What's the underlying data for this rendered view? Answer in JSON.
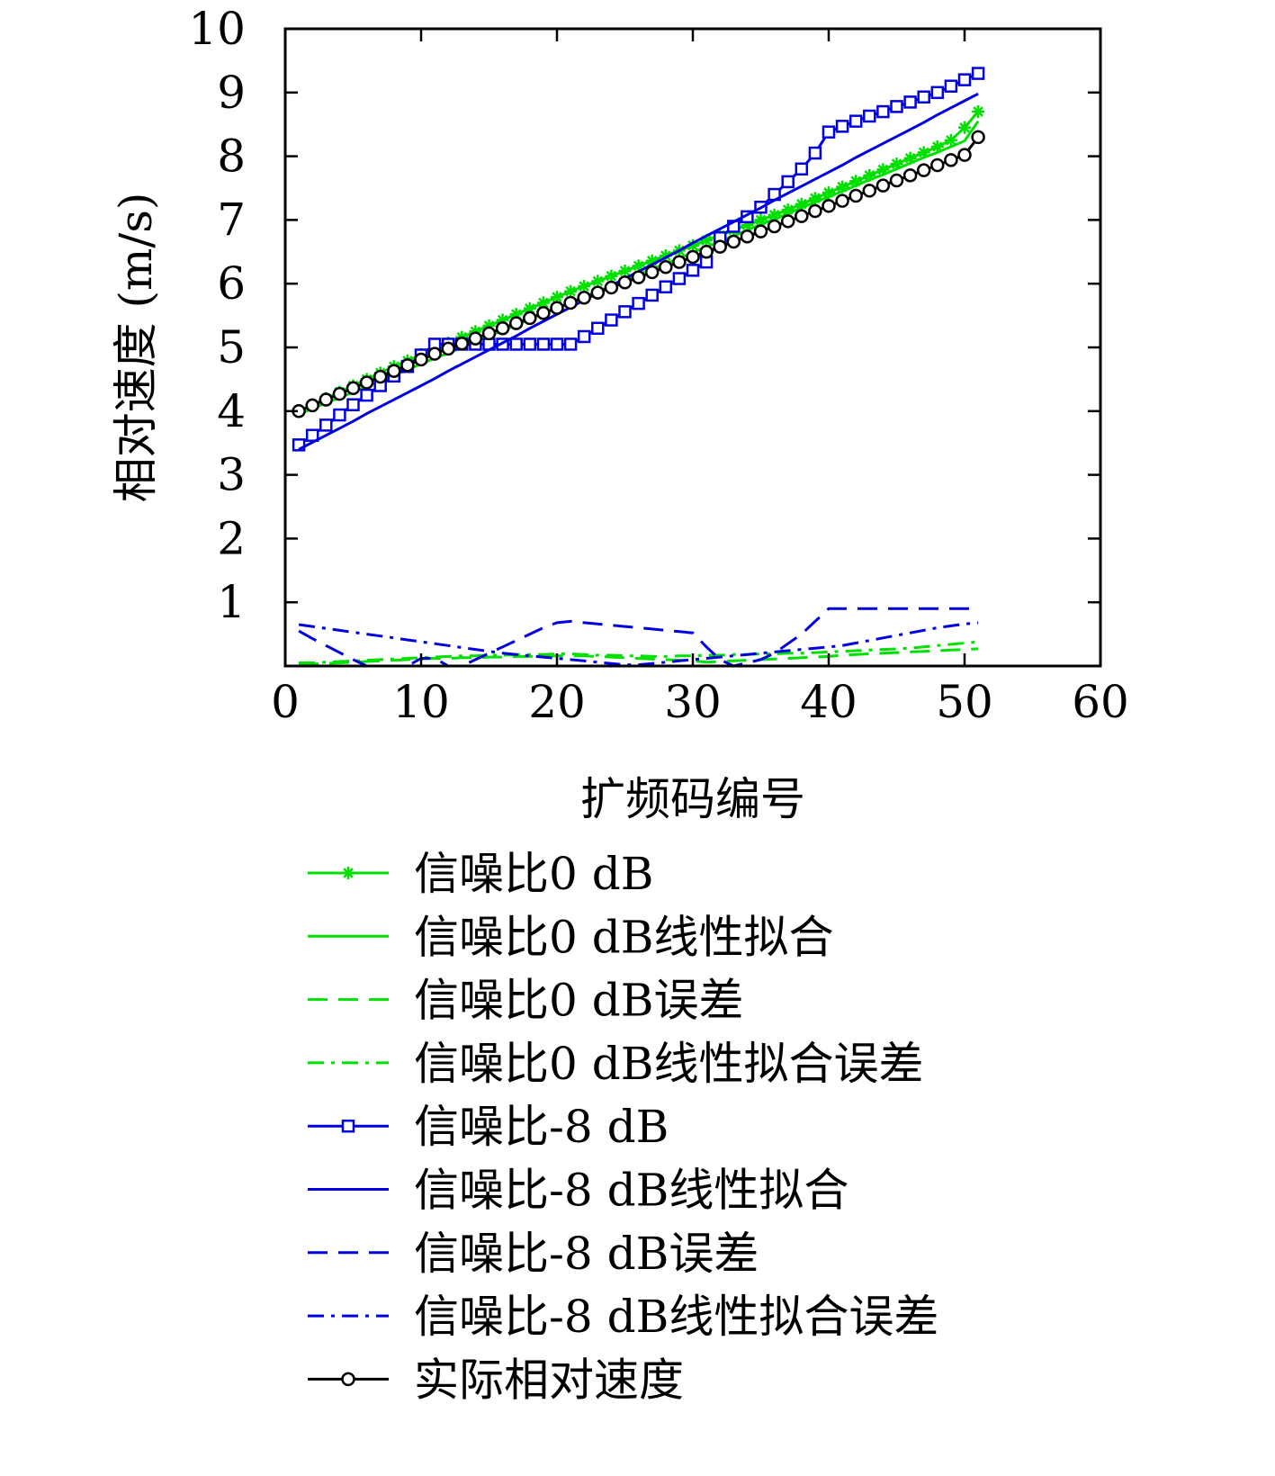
{
  "chart_data": {
    "type": "line",
    "xlabel": "扩频码编号",
    "ylabel": "相对速度 (m/s)",
    "xlim": [
      0,
      60
    ],
    "ylim": [
      0,
      10
    ],
    "xticks": [
      0,
      10,
      20,
      30,
      40,
      50,
      60
    ],
    "yticks": [
      1,
      2,
      3,
      4,
      5,
      6,
      7,
      8,
      9,
      10
    ],
    "grid": false,
    "legend_position": "below",
    "x": [
      1,
      2,
      3,
      4,
      5,
      6,
      7,
      8,
      9,
      10,
      11,
      12,
      13,
      14,
      15,
      16,
      17,
      18,
      19,
      20,
      21,
      22,
      23,
      24,
      25,
      26,
      27,
      28,
      29,
      30,
      31,
      32,
      33,
      34,
      35,
      36,
      37,
      38,
      39,
      40,
      41,
      42,
      43,
      44,
      45,
      46,
      47,
      48,
      49,
      50,
      51
    ],
    "series": [
      {
        "name": "信噪比0 dB",
        "color": "#00e000",
        "style": "solid",
        "marker": "star",
        "values": [
          4.0,
          4.1,
          4.2,
          4.3,
          4.4,
          4.5,
          4.6,
          4.7,
          4.79,
          4.89,
          4.98,
          5.07,
          5.16,
          5.25,
          5.34,
          5.43,
          5.52,
          5.61,
          5.7,
          5.79,
          5.88,
          5.96,
          6.04,
          6.12,
          6.2,
          6.28,
          6.36,
          6.44,
          6.52,
          6.6,
          6.68,
          6.76,
          6.84,
          6.92,
          7.0,
          7.08,
          7.16,
          7.25,
          7.34,
          7.43,
          7.52,
          7.61,
          7.7,
          7.79,
          7.88,
          7.97,
          8.06,
          8.15,
          8.25,
          8.45,
          8.7
        ]
      },
      {
        "name": "信噪比0 dB线性拟合",
        "color": "#00e000",
        "style": "solid",
        "marker": "none",
        "values": [
          3.95,
          4.04,
          4.13,
          4.21,
          4.3,
          4.39,
          4.48,
          4.56,
          4.65,
          4.74,
          4.83,
          4.91,
          5.0,
          5.09,
          5.18,
          5.26,
          5.35,
          5.44,
          5.53,
          5.61,
          5.7,
          5.79,
          5.88,
          5.96,
          6.05,
          6.14,
          6.23,
          6.31,
          6.4,
          6.49,
          6.58,
          6.66,
          6.75,
          6.84,
          6.93,
          7.01,
          7.1,
          7.19,
          7.28,
          7.36,
          7.45,
          7.54,
          7.63,
          7.71,
          7.8,
          7.89,
          7.98,
          8.06,
          8.15,
          8.24,
          8.55
        ]
      },
      {
        "name": "信噪比0 dB误差",
        "color": "#00e000",
        "style": "dashed",
        "marker": "none",
        "values": [
          0.02,
          0.03,
          0.04,
          0.05,
          0.06,
          0.07,
          0.08,
          0.09,
          0.1,
          0.11,
          0.12,
          0.12,
          0.13,
          0.13,
          0.14,
          0.14,
          0.15,
          0.15,
          0.15,
          0.16,
          0.16,
          0.16,
          0.15,
          0.14,
          0.13,
          0.12,
          0.11,
          0.1,
          0.09,
          0.08,
          0.06,
          0.07,
          0.08,
          0.09,
          0.1,
          0.11,
          0.12,
          0.13,
          0.14,
          0.15,
          0.17,
          0.18,
          0.19,
          0.2,
          0.21,
          0.22,
          0.23,
          0.24,
          0.25,
          0.26,
          0.27
        ]
      },
      {
        "name": "信噪比0 dB线性拟合误差",
        "color": "#00e000",
        "style": "dashdot",
        "marker": "none",
        "values": [
          0.05,
          0.05,
          0.06,
          0.07,
          0.08,
          0.09,
          0.1,
          0.11,
          0.12,
          0.13,
          0.14,
          0.15,
          0.16,
          0.16,
          0.17,
          0.17,
          0.18,
          0.18,
          0.18,
          0.19,
          0.19,
          0.18,
          0.17,
          0.17,
          0.16,
          0.16,
          0.15,
          0.15,
          0.16,
          0.16,
          0.17,
          0.17,
          0.18,
          0.18,
          0.19,
          0.19,
          0.2,
          0.2,
          0.21,
          0.22,
          0.23,
          0.24,
          0.25,
          0.26,
          0.27,
          0.28,
          0.3,
          0.32,
          0.34,
          0.36,
          0.38
        ]
      },
      {
        "name": "信噪比-8 dB",
        "color": "#0000e0",
        "style": "solid",
        "marker": "square",
        "values": [
          3.47,
          3.62,
          3.78,
          3.94,
          4.1,
          4.25,
          4.4,
          4.55,
          4.7,
          4.88,
          5.05,
          5.05,
          5.05,
          5.05,
          5.05,
          5.05,
          5.05,
          5.05,
          5.05,
          5.05,
          5.05,
          5.17,
          5.3,
          5.43,
          5.56,
          5.69,
          5.82,
          5.95,
          6.08,
          6.21,
          6.34,
          6.72,
          6.9,
          7.05,
          7.2,
          7.4,
          7.6,
          7.8,
          8.05,
          8.38,
          8.47,
          8.55,
          8.63,
          8.7,
          8.78,
          8.85,
          8.93,
          9.0,
          9.1,
          9.2,
          9.3
        ]
      },
      {
        "name": "信噪比-8 dB线性拟合",
        "color": "#0000e0",
        "style": "solid",
        "marker": "none",
        "values": [
          3.4,
          3.51,
          3.62,
          3.73,
          3.84,
          3.96,
          4.07,
          4.18,
          4.29,
          4.4,
          4.51,
          4.63,
          4.74,
          4.85,
          4.96,
          5.07,
          5.18,
          5.3,
          5.41,
          5.52,
          5.63,
          5.74,
          5.85,
          5.97,
          6.08,
          6.19,
          6.3,
          6.41,
          6.52,
          6.64,
          6.75,
          6.86,
          6.97,
          7.08,
          7.19,
          7.31,
          7.42,
          7.53,
          7.64,
          7.75,
          7.86,
          7.98,
          8.09,
          8.2,
          8.31,
          8.42,
          8.53,
          8.65,
          8.76,
          8.87,
          8.98
        ]
      },
      {
        "name": "信噪比-8 dB误差",
        "color": "#0000e0",
        "style": "dashed",
        "marker": "none",
        "values": [
          0.55,
          0.43,
          0.32,
          0.21,
          0.1,
          0.0,
          0.0,
          0.0,
          0.0,
          0.12,
          0.12,
          0.0,
          0.0,
          0.1,
          0.2,
          0.3,
          0.4,
          0.5,
          0.6,
          0.68,
          0.7,
          0.68,
          0.66,
          0.64,
          0.62,
          0.6,
          0.58,
          0.56,
          0.54,
          0.52,
          0.3,
          0.1,
          0.0,
          0.05,
          0.1,
          0.2,
          0.35,
          0.5,
          0.7,
          0.9,
          0.9,
          0.9,
          0.9,
          0.9,
          0.9,
          0.9,
          0.9,
          0.9,
          0.9,
          0.9,
          0.9
        ]
      },
      {
        "name": "信噪比-8 dB线性拟合误差",
        "color": "#0000e0",
        "style": "dashdot",
        "marker": "none",
        "values": [
          0.65,
          0.62,
          0.59,
          0.56,
          0.53,
          0.5,
          0.47,
          0.44,
          0.41,
          0.38,
          0.35,
          0.32,
          0.29,
          0.26,
          0.23,
          0.2,
          0.18,
          0.16,
          0.14,
          0.12,
          0.1,
          0.08,
          0.06,
          0.04,
          0.02,
          0.02,
          0.04,
          0.06,
          0.08,
          0.1,
          0.12,
          0.14,
          0.16,
          0.18,
          0.2,
          0.22,
          0.24,
          0.26,
          0.28,
          0.3,
          0.32,
          0.36,
          0.4,
          0.44,
          0.48,
          0.52,
          0.56,
          0.6,
          0.63,
          0.66,
          0.68
        ]
      },
      {
        "name": "实际相对速度",
        "color": "#000000",
        "style": "solid",
        "marker": "circle",
        "values": [
          4.0,
          4.09,
          4.18,
          4.27,
          4.36,
          4.45,
          4.54,
          4.63,
          4.72,
          4.81,
          4.9,
          4.98,
          5.06,
          5.14,
          5.22,
          5.3,
          5.38,
          5.46,
          5.54,
          5.62,
          5.7,
          5.78,
          5.86,
          5.94,
          6.02,
          6.1,
          6.18,
          6.26,
          6.34,
          6.42,
          6.5,
          6.58,
          6.66,
          6.74,
          6.82,
          6.9,
          6.98,
          7.06,
          7.14,
          7.22,
          7.3,
          7.38,
          7.46,
          7.54,
          7.62,
          7.7,
          7.78,
          7.86,
          7.94,
          8.02,
          8.3
        ]
      }
    ]
  }
}
